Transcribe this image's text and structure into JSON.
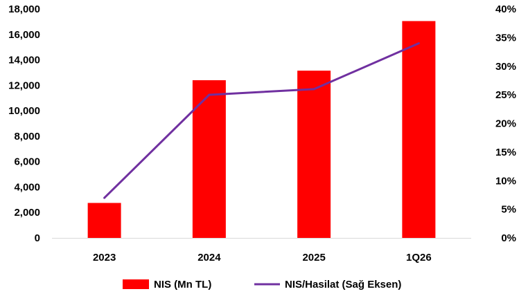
{
  "chart_data": {
    "type": "bar+line",
    "categories": [
      "2023",
      "2024",
      "2025",
      "1Q26"
    ],
    "series": [
      {
        "name": "NIS (Mn TL)",
        "type": "bar",
        "axis": "left",
        "color": "#FF0000",
        "values": [
          2750,
          12400,
          13150,
          17050
        ]
      },
      {
        "name": "NIS/Hasilat (Sağ Eksen)",
        "type": "line",
        "axis": "right",
        "color": "#7030A0",
        "values": [
          7,
          25,
          26,
          34
        ]
      }
    ],
    "y_left": {
      "ylim": [
        0,
        18000
      ],
      "ticks": [
        "0",
        "2,000",
        "4,000",
        "6,000",
        "8,000",
        "10,000",
        "12,000",
        "14,000",
        "16,000",
        "18,000"
      ]
    },
    "y_right": {
      "ylim": [
        0,
        40
      ],
      "ticks": [
        "0%",
        "5%",
        "10%",
        "15%",
        "20%",
        "25%",
        "30%",
        "35%",
        "40%"
      ]
    },
    "grid": false,
    "legend_position": "bottom"
  }
}
